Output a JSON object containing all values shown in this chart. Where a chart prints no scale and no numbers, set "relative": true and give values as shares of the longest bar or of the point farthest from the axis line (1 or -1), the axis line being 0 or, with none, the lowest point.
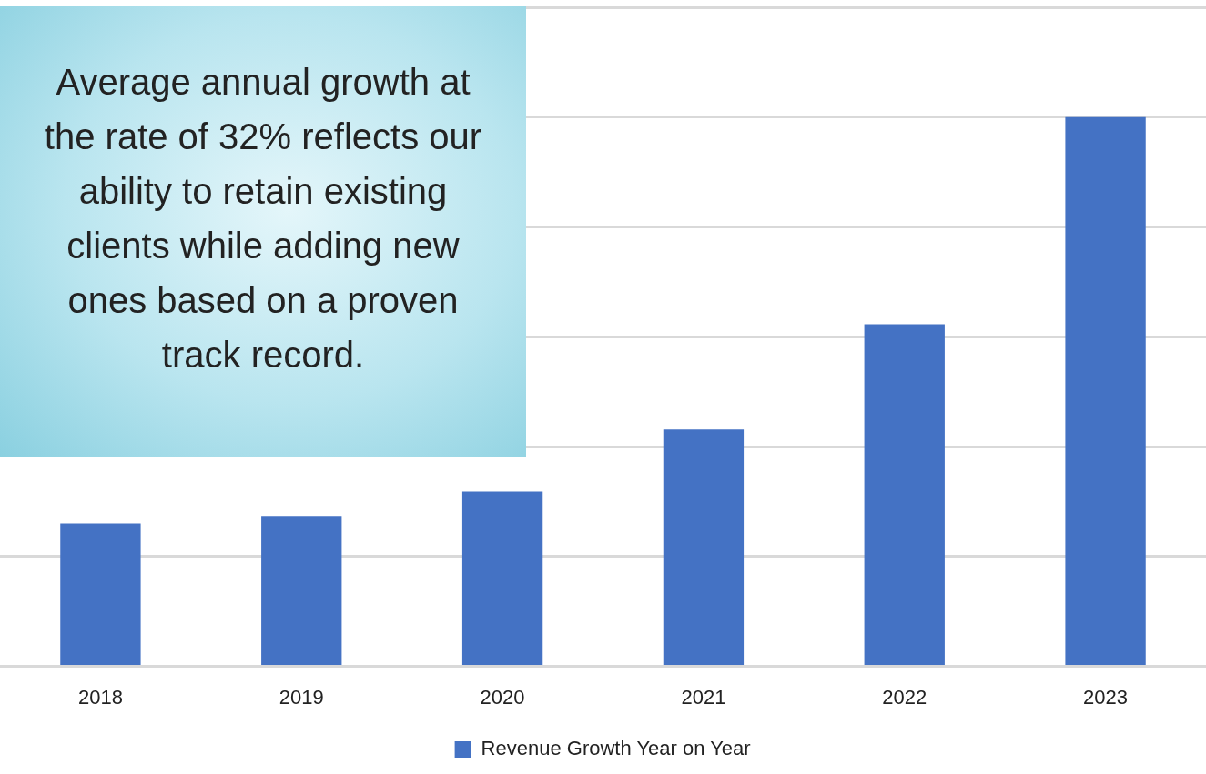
{
  "chart_data": {
    "type": "bar",
    "relative": true,
    "categories": [
      "2018",
      "2019",
      "2020",
      "2021",
      "2022",
      "2023"
    ],
    "series": [
      {
        "name": "Revenue Growth Year on Year",
        "color": "#4472c4",
        "values": [
          0.26,
          0.274,
          0.318,
          0.431,
          0.623,
          1
        ]
      }
    ],
    "annotations": [
      "Average annual growth at the rate of 32% reflects our ability to retain existing clients while adding new ones based on a proven track record."
    ],
    "grid": "y",
    "legend": "bottom"
  }
}
